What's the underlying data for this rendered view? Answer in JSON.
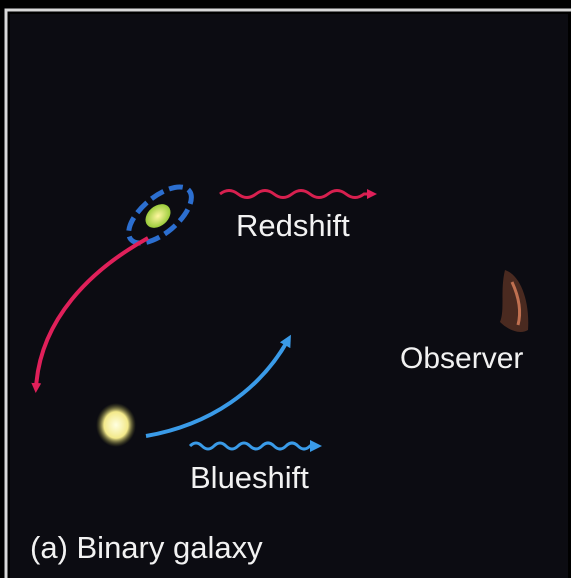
{
  "labels": {
    "redshift": "Redshift",
    "blueshift": "Blueshift",
    "observer": "Observer"
  },
  "caption": "(a) Binary galaxy"
}
